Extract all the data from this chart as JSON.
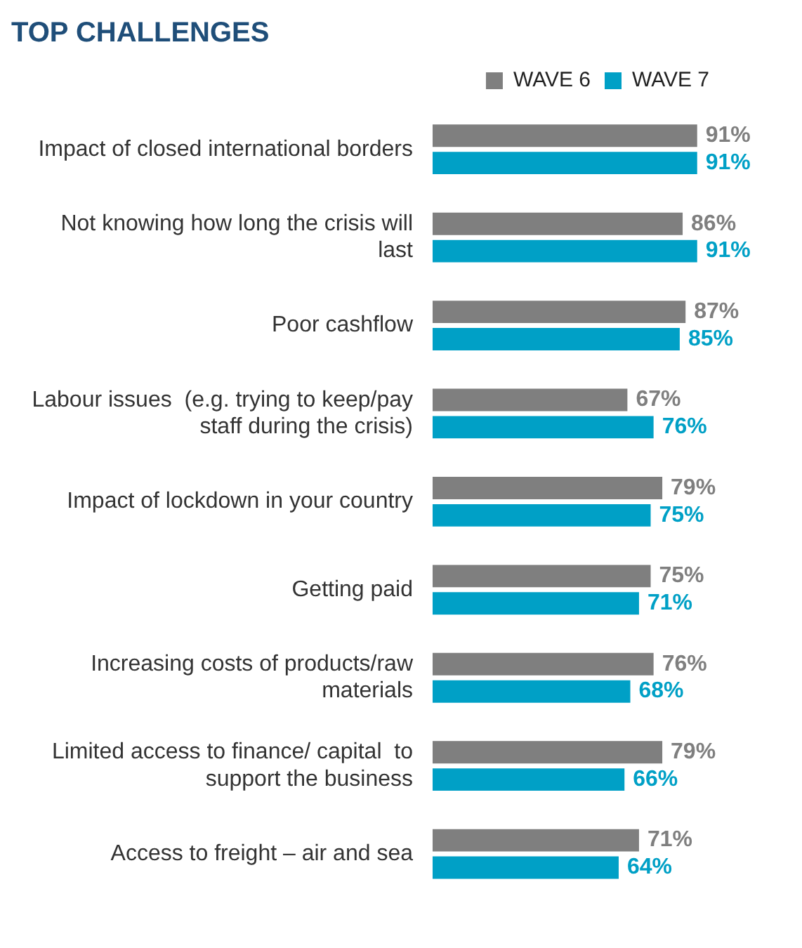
{
  "chart_data": {
    "type": "bar",
    "orientation": "horizontal",
    "title": "TOP CHALLENGES",
    "categories": [
      "Impact of closed international borders",
      "Not knowing how long the crisis will last",
      "Poor cashflow",
      "Labour issues  (e.g. trying to keep/pay staff during the crisis)",
      "Impact of lockdown in your country",
      "Getting paid",
      "Increasing costs of products/raw materials",
      "Limited access to finance/ capital  to support the business",
      "Access to freight – air and sea"
    ],
    "series": [
      {
        "name": "WAVE 6",
        "color": "#7f7f7f",
        "values": [
          91,
          86,
          87,
          67,
          79,
          75,
          76,
          79,
          71
        ],
        "value_labels": [
          "91%",
          "86%",
          "87%",
          "67%",
          "79%",
          "75%",
          "76%",
          "79%",
          "71%"
        ]
      },
      {
        "name": "WAVE 7",
        "color": "#00a0c6",
        "values": [
          91,
          91,
          85,
          76,
          75,
          71,
          68,
          66,
          64
        ],
        "value_labels": [
          "91%",
          "91%",
          "85%",
          "76%",
          "75%",
          "71%",
          "68%",
          "66%",
          "64%"
        ]
      }
    ],
    "legend": "top right",
    "grid": false,
    "tick_labels": "y"
  }
}
